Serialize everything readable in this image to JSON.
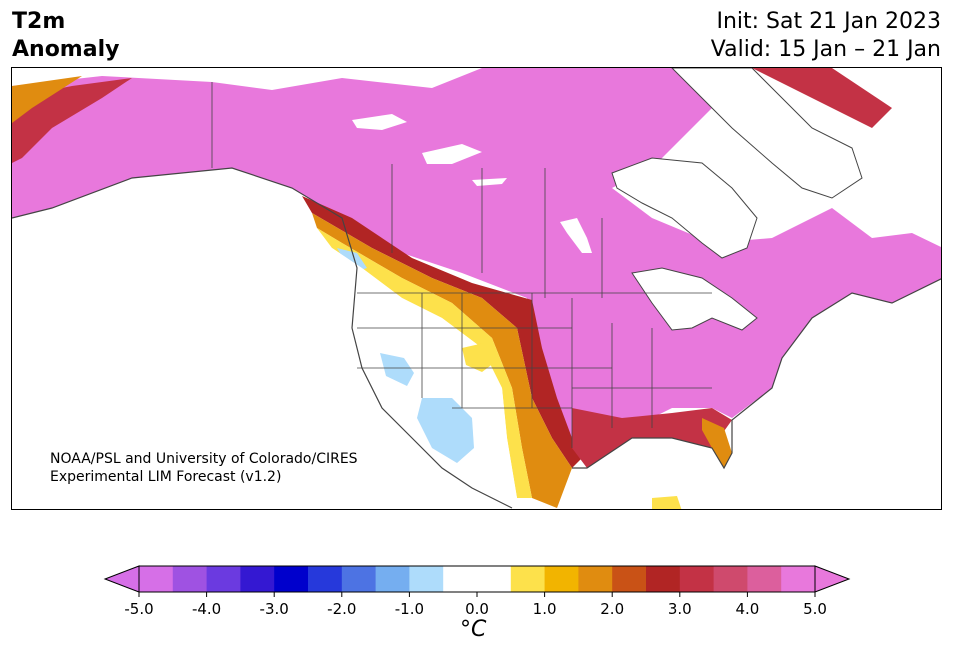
{
  "title": {
    "line1": "T2m",
    "line2": "Anomaly"
  },
  "dates": {
    "init": "Init: Sat 21 Jan 2023",
    "valid": "Valid: 15 Jan – 21 Jan"
  },
  "credit": {
    "line1": "NOAA/PSL and University of Colorado/CIRES",
    "line2": "Experimental LIM Forecast (v1.2)"
  },
  "colorbar": {
    "unit": "°C",
    "tick_labels": [
      "-5.0",
      "-4.0",
      "-3.0",
      "-2.0",
      "-1.0",
      "0.0",
      "1.0",
      "2.0",
      "3.0",
      "4.0",
      "5.0"
    ],
    "colors": [
      "#d66fe7",
      "#9f52e2",
      "#6b3ae0",
      "#3418d2",
      "#0000cc",
      "#2639db",
      "#4d73e3",
      "#75aef0",
      "#aedcfb",
      "#ffffff",
      "#ffffff",
      "#fde14b",
      "#f2b400",
      "#e08c10",
      "#c95216",
      "#b12524",
      "#c33245",
      "#cf4a6d",
      "#dc5f9d",
      "#e878dc"
    ]
  }
}
